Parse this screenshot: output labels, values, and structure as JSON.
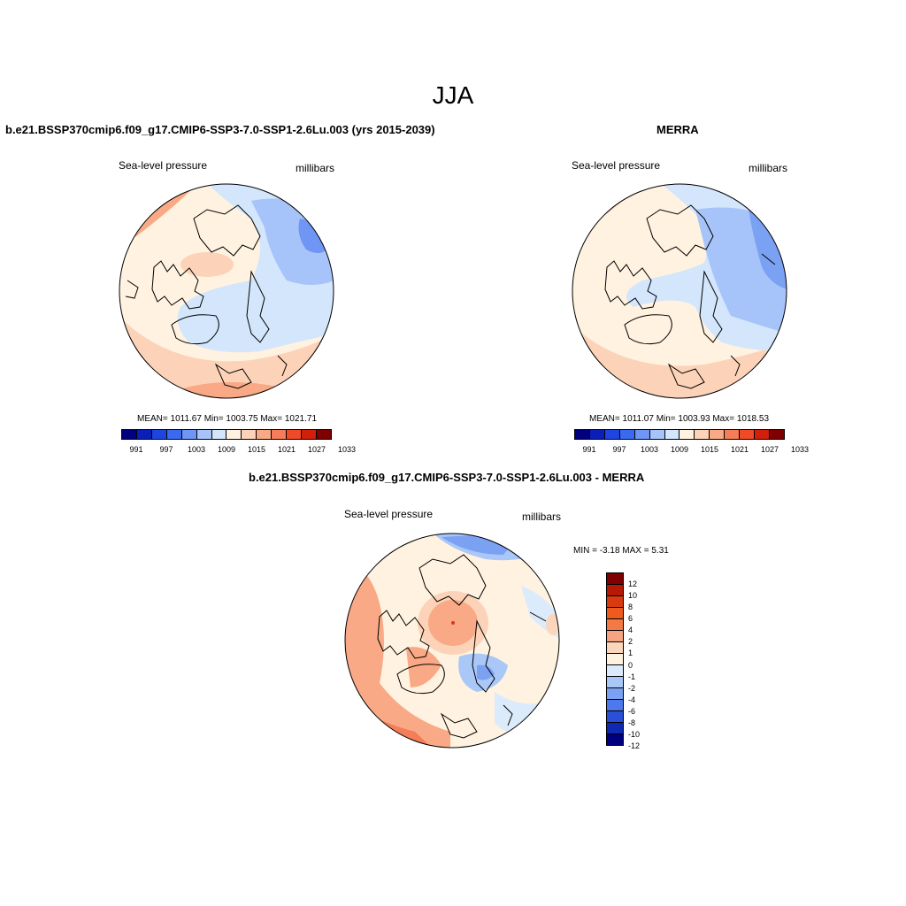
{
  "page": {
    "title": "JJA"
  },
  "colors": {
    "abs_scale": [
      "#00007f",
      "#0a1fb8",
      "#1f45e0",
      "#3a6af0",
      "#6f95f5",
      "#a7c4fa",
      "#d3e6fc",
      "#fff2e0",
      "#fcd3b8",
      "#f9a985",
      "#f57d59",
      "#f04a28",
      "#d11f0a",
      "#7f0000"
    ],
    "diff_scale": [
      "#7f0000",
      "#b51a05",
      "#d93a10",
      "#ef5a1e",
      "#f47a45",
      "#f7a280",
      "#fbd6bd",
      "#fff2e0",
      "#dcebfb",
      "#a9c7f7",
      "#7ba1f2",
      "#4e79ec",
      "#2a4fd8",
      "#1029b3",
      "#00007f"
    ],
    "land_outline": "#000000"
  },
  "panels": {
    "model": {
      "title": "b.e21.BSSP370cmip6.f09_g17.CMIP6-SSP3-7.0-SSP1-2.6Lu.003 (yrs 2015-2039)",
      "variable": "Sea-level pressure",
      "units": "millibars",
      "stats": "MEAN= 1011.67  Min= 1003.75  Max= 1021.71",
      "colorbar_ticks": [
        "991",
        "997",
        "1003",
        "1009",
        "1015",
        "1021",
        "1027",
        "1033"
      ]
    },
    "obs": {
      "title": "MERRA",
      "variable": "Sea-level pressure",
      "units": "millibars",
      "stats": "MEAN= 1011.07  Min= 1003.93  Max= 1018.53",
      "colorbar_ticks": [
        "991",
        "997",
        "1003",
        "1009",
        "1015",
        "1021",
        "1027",
        "1033"
      ]
    },
    "diff": {
      "title": "b.e21.BSSP370cmip6.f09_g17.CMIP6-SSP3-7.0-SSP1-2.6Lu.003 - MERRA",
      "variable": "Sea-level pressure",
      "units": "millibars",
      "stats": "MIN =  -3.18 MAX =   5.31",
      "colorbar_ticks": [
        "12",
        "10",
        "8",
        "6",
        "4",
        "2",
        "1",
        "0",
        "-1",
        "-2",
        "-4",
        "-6",
        "-8",
        "-10",
        "-12"
      ]
    }
  }
}
